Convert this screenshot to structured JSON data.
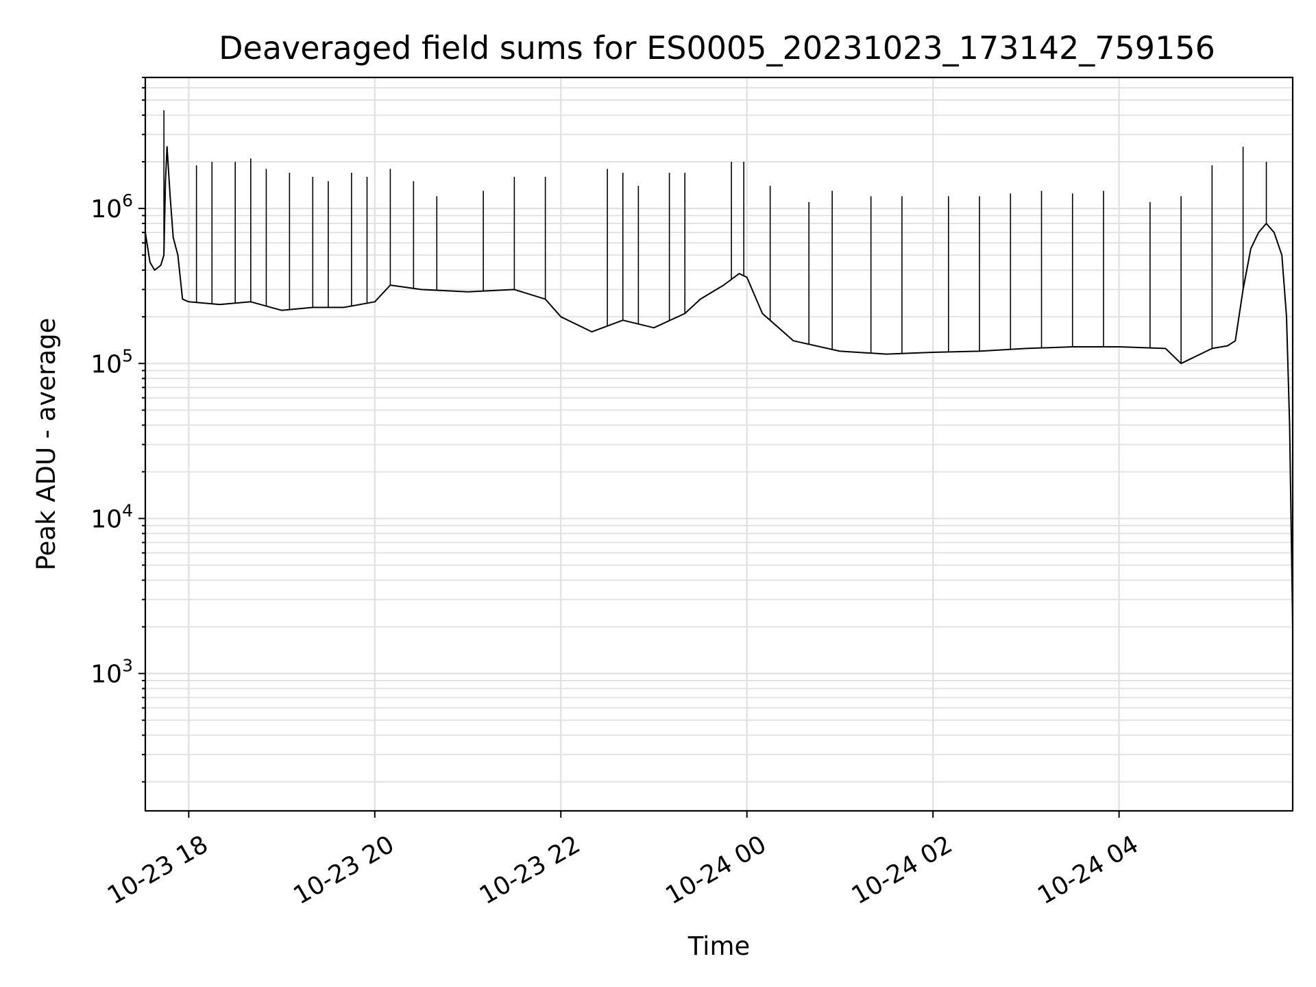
{
  "chart_data": {
    "type": "line",
    "title": "Deaveraged field sums for ES0005_20231023_173142_759156",
    "xlabel": "Time",
    "ylabel": "Peak ADU - average",
    "yscale": "log",
    "ylim": [
      130,
      7000000
    ],
    "xlim": [
      "2023-10-23 17:32",
      "2023-10-24 05:52"
    ],
    "grid": true,
    "line_color": "#000000",
    "grid_color": "#e0e0e0",
    "x_ticks": [
      {
        "value": "2023-10-23 18:00",
        "label": "10-23 18"
      },
      {
        "value": "2023-10-23 20:00",
        "label": "10-23 20"
      },
      {
        "value": "2023-10-23 22:00",
        "label": "10-23 22"
      },
      {
        "value": "2023-10-24 00:00",
        "label": "10-24 00"
      },
      {
        "value": "2023-10-24 02:00",
        "label": "10-24 02"
      },
      {
        "value": "2023-10-24 04:00",
        "label": "10-24 04"
      }
    ],
    "y_ticks": [
      {
        "value": 1000,
        "base": "10",
        "exp": "3"
      },
      {
        "value": 10000,
        "base": "10",
        "exp": "4"
      },
      {
        "value": 100000,
        "base": "10",
        "exp": "5"
      },
      {
        "value": 1000000,
        "base": "10",
        "exp": "6"
      }
    ],
    "series": [
      {
        "x": [
          "2023-10-23 17:32",
          "2023-10-23 17:35",
          "2023-10-23 17:38",
          "2023-10-23 17:42",
          "2023-10-23 17:44",
          "2023-10-23 17:45",
          "2023-10-23 17:46",
          "2023-10-23 17:48",
          "2023-10-23 17:50",
          "2023-10-23 17:53",
          "2023-10-23 17:56",
          "2023-10-23 18:00",
          "2023-10-23 18:20",
          "2023-10-23 18:40",
          "2023-10-23 19:00",
          "2023-10-23 19:20",
          "2023-10-23 19:40",
          "2023-10-23 20:00",
          "2023-10-23 20:10",
          "2023-10-23 20:30",
          "2023-10-23 21:00",
          "2023-10-23 21:30",
          "2023-10-23 21:50",
          "2023-10-23 22:00",
          "2023-10-23 22:20",
          "2023-10-23 22:40",
          "2023-10-23 23:00",
          "2023-10-23 23:20",
          "2023-10-23 23:30",
          "2023-10-23 23:45",
          "2023-10-23 23:55",
          "2023-10-24 00:00",
          "2023-10-24 00:10",
          "2023-10-24 00:30",
          "2023-10-24 01:00",
          "2023-10-24 01:30",
          "2023-10-24 02:00",
          "2023-10-24 02:30",
          "2023-10-24 03:00",
          "2023-10-24 03:30",
          "2023-10-24 04:00",
          "2023-10-24 04:30",
          "2023-10-24 04:40",
          "2023-10-24 05:00",
          "2023-10-24 05:10",
          "2023-10-24 05:15",
          "2023-10-24 05:20",
          "2023-10-24 05:25",
          "2023-10-24 05:30",
          "2023-10-24 05:35",
          "2023-10-24 05:40",
          "2023-10-24 05:45",
          "2023-10-24 05:48",
          "2023-10-24 05:50",
          "2023-10-24 05:52"
        ],
        "y": [
          700000,
          450000,
          400000,
          430000,
          500000,
          1500000,
          2500000,
          1200000,
          650000,
          500000,
          260000,
          250000,
          240000,
          250000,
          220000,
          230000,
          230000,
          250000,
          320000,
          300000,
          290000,
          300000,
          260000,
          200000,
          160000,
          190000,
          170000,
          210000,
          260000,
          320000,
          380000,
          360000,
          210000,
          140000,
          120000,
          115000,
          118000,
          120000,
          125000,
          128000,
          128000,
          125000,
          100000,
          125000,
          130000,
          140000,
          300000,
          550000,
          700000,
          800000,
          700000,
          500000,
          200000,
          40000,
          2000
        ],
        "spikes": [
          {
            "x": "2023-10-23 17:44",
            "y": 4300000
          },
          {
            "x": "2023-10-23 18:05",
            "y": 1900000
          },
          {
            "x": "2023-10-23 18:15",
            "y": 2000000
          },
          {
            "x": "2023-10-23 18:30",
            "y": 2000000
          },
          {
            "x": "2023-10-23 18:40",
            "y": 2100000
          },
          {
            "x": "2023-10-23 18:50",
            "y": 1800000
          },
          {
            "x": "2023-10-23 19:05",
            "y": 1700000
          },
          {
            "x": "2023-10-23 19:20",
            "y": 1600000
          },
          {
            "x": "2023-10-23 19:30",
            "y": 1500000
          },
          {
            "x": "2023-10-23 19:45",
            "y": 1700000
          },
          {
            "x": "2023-10-23 19:55",
            "y": 1600000
          },
          {
            "x": "2023-10-23 20:10",
            "y": 1800000
          },
          {
            "x": "2023-10-23 20:25",
            "y": 1500000
          },
          {
            "x": "2023-10-23 20:40",
            "y": 1200000
          },
          {
            "x": "2023-10-23 21:10",
            "y": 1300000
          },
          {
            "x": "2023-10-23 21:30",
            "y": 1600000
          },
          {
            "x": "2023-10-23 21:50",
            "y": 1600000
          },
          {
            "x": "2023-10-23 22:30",
            "y": 1800000
          },
          {
            "x": "2023-10-23 22:40",
            "y": 1700000
          },
          {
            "x": "2023-10-23 22:50",
            "y": 1400000
          },
          {
            "x": "2023-10-23 23:10",
            "y": 1700000
          },
          {
            "x": "2023-10-23 23:20",
            "y": 1700000
          },
          {
            "x": "2023-10-23 23:50",
            "y": 2000000
          },
          {
            "x": "2023-10-23 23:58",
            "y": 2000000
          },
          {
            "x": "2023-10-24 00:15",
            "y": 1400000
          },
          {
            "x": "2023-10-24 00:40",
            "y": 1100000
          },
          {
            "x": "2023-10-24 00:55",
            "y": 1300000
          },
          {
            "x": "2023-10-24 01:20",
            "y": 1200000
          },
          {
            "x": "2023-10-24 01:40",
            "y": 1200000
          },
          {
            "x": "2023-10-24 02:10",
            "y": 1200000
          },
          {
            "x": "2023-10-24 02:30",
            "y": 1200000
          },
          {
            "x": "2023-10-24 02:50",
            "y": 1250000
          },
          {
            "x": "2023-10-24 03:10",
            "y": 1300000
          },
          {
            "x": "2023-10-24 03:30",
            "y": 1250000
          },
          {
            "x": "2023-10-24 03:50",
            "y": 1300000
          },
          {
            "x": "2023-10-24 04:20",
            "y": 1100000
          },
          {
            "x": "2023-10-24 04:40",
            "y": 1200000
          },
          {
            "x": "2023-10-24 05:00",
            "y": 1900000
          },
          {
            "x": "2023-10-24 05:20",
            "y": 2500000
          },
          {
            "x": "2023-10-24 05:35",
            "y": 2000000
          }
        ]
      }
    ]
  }
}
